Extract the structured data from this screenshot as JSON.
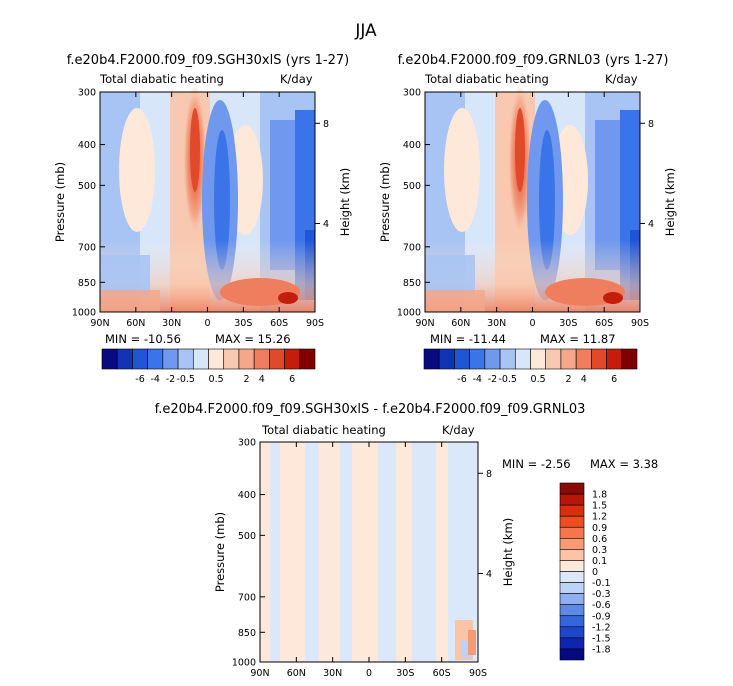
{
  "page_title": "JJA",
  "chart_data": [
    {
      "type": "heatmap",
      "title": "f.e20b4.F2000.f09_f09.SGH30xlS (yrs 1-27)",
      "variable_label": "Total diabatic heating",
      "units_label": "K/day",
      "xlabel": "",
      "ylabel": "Pressure (mb)",
      "y2label": "Height (km)",
      "x_ticks": [
        "90N",
        "60N",
        "30N",
        "0",
        "30S",
        "60S",
        "90S"
      ],
      "y_ticks": [
        "300",
        "400",
        "500",
        "700",
        "850",
        "1000"
      ],
      "y_tick_values": [
        300,
        400,
        500,
        700,
        850,
        1000
      ],
      "y2_ticks": [
        "8",
        "4"
      ],
      "y2_tick_values": [
        8,
        4
      ],
      "xlim": [
        90,
        -90
      ],
      "ylim": [
        1000,
        300
      ],
      "y_scale": "log",
      "min_label": "MIN = -10.56",
      "max_label": "MAX = 15.26",
      "colorbar_labels": [
        "-6",
        "-4",
        "-2",
        "-0.5",
        "0.5",
        "2",
        "4",
        "6"
      ],
      "colorbar_orientation": "horizontal",
      "colors": [
        "#0a0a80",
        "#1234b4",
        "#1f55d6",
        "#3b74e8",
        "#6f98ee",
        "#a8c4f4",
        "#d8e6fa",
        "#fde8da",
        "#f8c9b0",
        "#f4a78a",
        "#ee7e5e",
        "#e04a2a",
        "#c41d0c",
        "#800000"
      ]
    },
    {
      "type": "heatmap",
      "title": "f.e20b4.F2000.f09_f09.GRNL03 (yrs 1-27)",
      "variable_label": "Total diabatic heating",
      "units_label": "K/day",
      "xlabel": "",
      "ylabel": "Pressure (mb)",
      "y2label": "Height (km)",
      "x_ticks": [
        "90N",
        "60N",
        "30N",
        "0",
        "30S",
        "60S",
        "90S"
      ],
      "y_ticks": [
        "300",
        "400",
        "500",
        "700",
        "850",
        "1000"
      ],
      "y_tick_values": [
        300,
        400,
        500,
        700,
        850,
        1000
      ],
      "y2_ticks": [
        "8",
        "4"
      ],
      "y2_tick_values": [
        8,
        4
      ],
      "xlim": [
        90,
        -90
      ],
      "ylim": [
        1000,
        300
      ],
      "y_scale": "log",
      "min_label": "MIN = -11.44",
      "max_label": "MAX = 11.87",
      "colorbar_labels": [
        "-6",
        "-4",
        "-2",
        "-0.5",
        "0.5",
        "2",
        "4",
        "6"
      ],
      "colorbar_orientation": "horizontal",
      "colors": [
        "#0a0a80",
        "#1234b4",
        "#1f55d6",
        "#3b74e8",
        "#6f98ee",
        "#a8c4f4",
        "#d8e6fa",
        "#fde8da",
        "#f8c9b0",
        "#f4a78a",
        "#ee7e5e",
        "#e04a2a",
        "#c41d0c",
        "#800000"
      ]
    },
    {
      "type": "heatmap",
      "title": "f.e20b4.F2000.f09_f09.SGH30xlS - f.e20b4.F2000.f09_f09.GRNL03",
      "variable_label": "Total diabatic heating",
      "units_label": "K/day",
      "xlabel": "",
      "ylabel": "Pressure (mb)",
      "y2label": "Height (km)",
      "x_ticks": [
        "90N",
        "60N",
        "30N",
        "0",
        "30S",
        "60S",
        "90S"
      ],
      "y_ticks": [
        "300",
        "400",
        "500",
        "700",
        "850",
        "1000"
      ],
      "y_tick_values": [
        300,
        400,
        500,
        700,
        850,
        1000
      ],
      "y2_ticks": [
        "8",
        "4"
      ],
      "y2_tick_values": [
        8,
        4
      ],
      "xlim": [
        90,
        -90
      ],
      "ylim": [
        1000,
        300
      ],
      "y_scale": "log",
      "min_label": "MIN =   -2.56",
      "max_label": "MAX =    3.38",
      "colorbar_labels": [
        "1.8",
        "1.5",
        "1.2",
        "0.9",
        "0.6",
        "0.3",
        "0.1",
        "0",
        "-0.1",
        "-0.3",
        "-0.6",
        "-0.9",
        "-1.2",
        "-1.5",
        "-1.8"
      ],
      "colorbar_orientation": "vertical",
      "colors": [
        "#8a0a0a",
        "#b81606",
        "#d8300c",
        "#ee4e1e",
        "#f5764a",
        "#f89a74",
        "#fbc4a6",
        "#fde8da",
        "#dbe8fa",
        "#bcd2f8",
        "#8eb0f2",
        "#5d8ae6",
        "#3566dc",
        "#1c46cc",
        "#1024b0",
        "#050a80"
      ]
    }
  ]
}
